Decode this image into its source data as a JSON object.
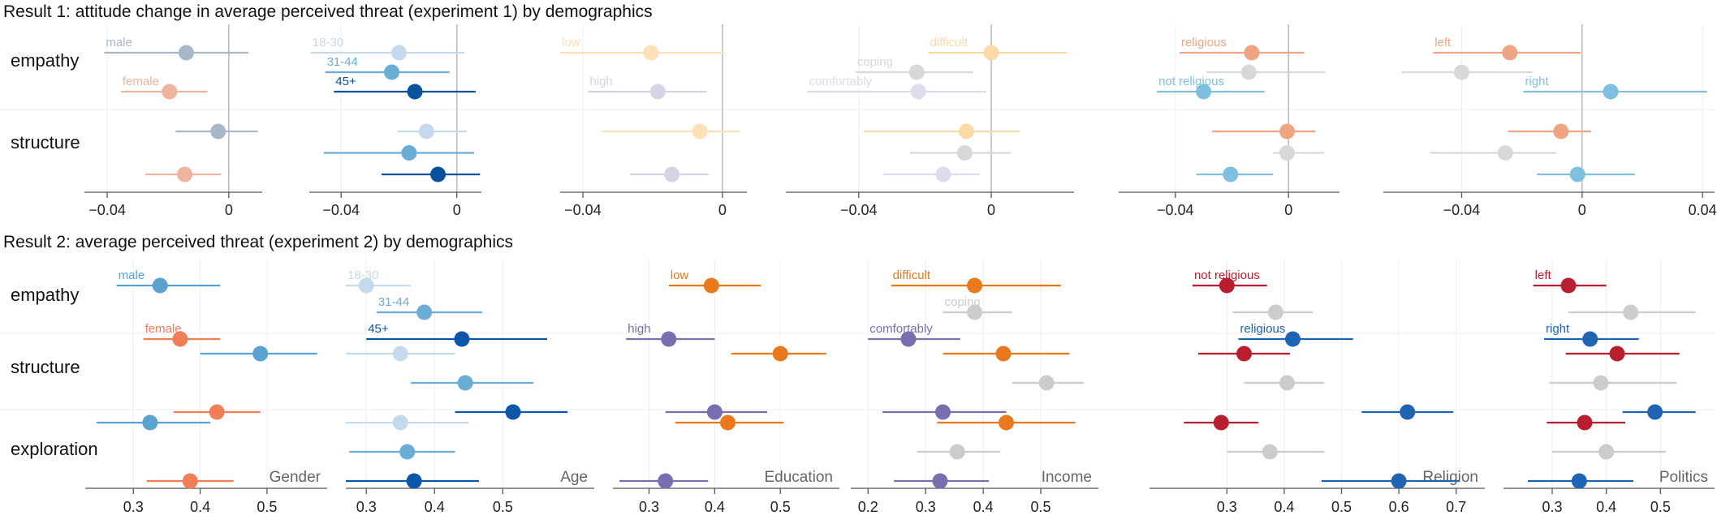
{
  "chart_data": [
    {
      "type": "dot-interval",
      "title": "Result 1:  attitude change in average perceived threat (experiment 1) by demographics",
      "rows": [
        "empathy",
        "structure"
      ],
      "panels": [
        {
          "name": "",
          "ticks": [
            -0.04,
            0
          ],
          "xlim": [
            -0.0475,
            0.011
          ],
          "groups": [
            {
              "label": "male",
              "color": "#a6b8c8",
              "rows": [
                [
                  -0.014,
                  -0.041,
                  0.0065
                ],
                [
                  -0.0035,
                  -0.0175,
                  0.0095
                ]
              ]
            },
            {
              "label": "female",
              "color": "#efb49e",
              "rows": [
                [
                  -0.0195,
                  -0.0355,
                  -0.007
                ],
                [
                  -0.0145,
                  -0.0275,
                  -0.0025
                ]
              ]
            }
          ]
        },
        {
          "name": "",
          "ticks": [
            -0.04,
            0
          ],
          "xlim": [
            -0.051,
            0.0085
          ],
          "groups": [
            {
              "label": "18-30",
              "color": "#c5d9ec",
              "rows": [
                [
                  -0.02,
                  -0.0505,
                  0.0025
                ],
                [
                  -0.0105,
                  -0.0205,
                  0.0035
                ]
              ]
            },
            {
              "label": "31-44",
              "color": "#6aaed6",
              "rows": [
                [
                  -0.0225,
                  -0.0455,
                  -0.0025
                ],
                [
                  -0.0165,
                  -0.046,
                  0.006
                ]
              ]
            },
            {
              "label": "45+",
              "color": "#08519c",
              "rows": [
                [
                  -0.0145,
                  -0.0425,
                  0.0065
                ],
                [
                  -0.0065,
                  -0.026,
                  0.008
                ]
              ]
            }
          ]
        },
        {
          "name": "",
          "ticks": [
            -0.04,
            0
          ],
          "xlim": [
            -0.0465,
            0.007
          ],
          "groups": [
            {
              "label": "low",
              "color": "#fde0b5",
              "rows": [
                [
                  -0.0205,
                  -0.0465,
                  0.0005
                ],
                [
                  -0.0065,
                  -0.0345,
                  0.005
                ]
              ]
            },
            {
              "label": "high",
              "color": "#d4d4e6",
              "rows": [
                [
                  -0.0185,
                  -0.0385,
                  -0.0045
                ],
                [
                  -0.0145,
                  -0.0265,
                  -0.004
                ]
              ]
            }
          ]
        },
        {
          "name": "",
          "ticks": [
            -0.04,
            0
          ],
          "xlim": [
            -0.062,
            0.025
          ],
          "groups": [
            {
              "label": "difficult",
              "color": "#fdd9a8",
              "rows": [
                [
                  0.0,
                  -0.019,
                  0.023
                ],
                [
                  -0.0075,
                  -0.0385,
                  0.0085
                ]
              ]
            },
            {
              "label": "coping",
              "color": "#d8d8d8",
              "rows": [
                [
                  -0.0225,
                  -0.041,
                  -0.0055
                ],
                [
                  -0.008,
                  -0.0245,
                  0.006
                ]
              ]
            },
            {
              "label": "comfortably",
              "color": "#dcdcec",
              "rows": [
                [
                  -0.022,
                  -0.0555,
                  -0.0015
                ],
                [
                  -0.0145,
                  -0.0325,
                  -0.0035
                ]
              ]
            }
          ]
        },
        {
          "name": "",
          "ticks": [
            -0.04,
            0
          ],
          "xlim": [
            -0.06,
            0.018
          ],
          "groups": [
            {
              "label": "religious",
              "color": "#f0a582",
              "rows": [
                [
                  -0.013,
                  -0.0385,
                  0.0055
                ],
                [
                  -0.0005,
                  -0.027,
                  0.0095
                ]
              ]
            },
            {
              "label": "",
              "color": "#d8d8d8",
              "rows": [
                [
                  -0.014,
                  -0.029,
                  0.013
                ],
                [
                  -0.0005,
                  -0.0055,
                  0.0125
                ]
              ]
            },
            {
              "label": "not religious",
              "color": "#7fbfe0",
              "rows": [
                [
                  -0.03,
                  -0.0465,
                  -0.0085
                ],
                [
                  -0.0205,
                  -0.0325,
                  -0.0055
                ]
              ]
            }
          ]
        },
        {
          "name": "",
          "ticks": [
            -0.04,
            0,
            0.04
          ],
          "xlim": [
            -0.066,
            0.044
          ],
          "groups": [
            {
              "label": "left",
              "color": "#f0a582",
              "rows": [
                [
                  -0.024,
                  -0.0495,
                  -0.0005
                ],
                [
                  -0.007,
                  -0.0245,
                  0.003
                ]
              ]
            },
            {
              "label": "",
              "color": "#d8d8d8",
              "rows": [
                [
                  -0.04,
                  -0.06,
                  -0.0165
                ],
                [
                  -0.0255,
                  -0.0505,
                  -0.0085
                ]
              ]
            },
            {
              "label": "right",
              "color": "#7fbfe0",
              "rows": [
                [
                  0.0095,
                  -0.0195,
                  0.0415
                ],
                [
                  -0.0015,
                  -0.015,
                  0.0175
                ]
              ]
            }
          ]
        }
      ]
    },
    {
      "type": "dot-interval",
      "title": "Result 2:  average perceived threat (experiment 2) by demographics",
      "rows": [
        "empathy",
        "structure",
        "exploration"
      ],
      "panels": [
        {
          "name": "Gender",
          "ticks": [
            0.3,
            0.4,
            0.5
          ],
          "xlim": [
            0.228,
            0.59
          ],
          "groups": [
            {
              "label": "male",
              "color": "#5aa2d2",
              "rows": [
                [
                  0.34,
                  0.275,
                  0.43
                ],
                [
                  0.49,
                  0.4,
                  0.575
                ],
                [
                  0.325,
                  0.245,
                  0.415
                ]
              ]
            },
            {
              "label": "female",
              "color": "#f07e57",
              "rows": [
                [
                  0.37,
                  0.315,
                  0.43
                ],
                [
                  0.425,
                  0.36,
                  0.49
                ],
                [
                  0.385,
                  0.32,
                  0.45
                ]
              ]
            }
          ]
        },
        {
          "name": "Age",
          "ticks": [
            0.3,
            0.4,
            0.5
          ],
          "xlim": [
            0.27,
            0.634
          ],
          "groups": [
            {
              "label": "18-30",
              "color": "#c5d9ec",
              "rows": [
                [
                  0.3,
                  0.27,
                  0.365
                ],
                [
                  0.35,
                  0.27,
                  0.43
                ],
                [
                  0.35,
                  0.27,
                  0.45
                ]
              ]
            },
            {
              "label": "31-44",
              "color": "#6aaed6",
              "rows": [
                [
                  0.385,
                  0.315,
                  0.47
                ],
                [
                  0.445,
                  0.365,
                  0.545
                ],
                [
                  0.36,
                  0.275,
                  0.43
                ]
              ]
            },
            {
              "label": "45+",
              "color": "#0b56a8",
              "rows": [
                [
                  0.44,
                  0.3,
                  0.565
                ],
                [
                  0.515,
                  0.43,
                  0.595
                ],
                [
                  0.37,
                  0.27,
                  0.465
                ]
              ]
            }
          ]
        },
        {
          "name": "Education",
          "ticks": [
            0.3,
            0.4,
            0.5
          ],
          "xlim": [
            0.245,
            0.59
          ],
          "groups": [
            {
              "label": "low",
              "color": "#e8791c",
              "rows": [
                [
                  0.395,
                  0.33,
                  0.47
                ],
                [
                  0.5,
                  0.425,
                  0.57
                ],
                [
                  0.42,
                  0.34,
                  0.505
                ]
              ]
            },
            {
              "label": "high",
              "color": "#7a6db0",
              "rows": [
                [
                  0.33,
                  0.265,
                  0.4
                ],
                [
                  0.4,
                  0.325,
                  0.48
                ],
                [
                  0.325,
                  0.255,
                  0.39
                ]
              ]
            }
          ]
        },
        {
          "name": "Income",
          "ticks": [
            0.2,
            0.3,
            0.4,
            0.5
          ],
          "xlim": [
            0.17,
            0.6
          ],
          "groups": [
            {
              "label": "difficult",
              "color": "#e8791c",
              "rows": [
                [
                  0.385,
                  0.24,
                  0.535
                ],
                [
                  0.435,
                  0.33,
                  0.55
                ],
                [
                  0.44,
                  0.32,
                  0.56
                ]
              ]
            },
            {
              "label": "coping",
              "color": "#cccccc",
              "rows": [
                [
                  0.385,
                  0.33,
                  0.45
                ],
                [
                  0.51,
                  0.45,
                  0.575
                ],
                [
                  0.355,
                  0.285,
                  0.43
                ]
              ]
            },
            {
              "label": "comfortably",
              "color": "#7a6db0",
              "rows": [
                [
                  0.27,
                  0.2,
                  0.36
                ],
                [
                  0.33,
                  0.225,
                  0.44
                ],
                [
                  0.325,
                  0.245,
                  0.41
                ]
              ]
            }
          ]
        },
        {
          "name": "Religion",
          "ticks": [
            0.3,
            0.4,
            0.5,
            0.6,
            0.7
          ],
          "xlim": [
            0.165,
            0.75
          ],
          "groups": [
            {
              "label": "not religious",
              "color": "#b81e2f",
              "rows": [
                [
                  0.3,
                  0.24,
                  0.37
                ],
                [
                  0.33,
                  0.25,
                  0.41
                ],
                [
                  0.29,
                  0.225,
                  0.355
                ]
              ]
            },
            {
              "label": "",
              "color": "#cccccc",
              "rows": [
                [
                  0.385,
                  0.31,
                  0.45
                ],
                [
                  0.405,
                  0.33,
                  0.47
                ],
                [
                  0.375,
                  0.3,
                  0.47
                ]
              ]
            },
            {
              "label": "religious",
              "color": "#1f64b3",
              "rows": [
                [
                  0.415,
                  0.32,
                  0.52
                ],
                [
                  0.615,
                  0.535,
                  0.695
                ],
                [
                  0.6,
                  0.465,
                  0.705
                ]
              ]
            }
          ]
        },
        {
          "name": "Politics",
          "ticks": [
            0.3,
            0.4,
            0.5
          ],
          "xlim": [
            0.21,
            0.6
          ],
          "groups": [
            {
              "label": "left",
              "color": "#b81e2f",
              "rows": [
                [
                  0.33,
                  0.265,
                  0.4
                ],
                [
                  0.42,
                  0.325,
                  0.535
                ],
                [
                  0.36,
                  0.29,
                  0.435
                ]
              ]
            },
            {
              "label": "",
              "color": "#cccccc",
              "rows": [
                [
                  0.445,
                  0.33,
                  0.565
                ],
                [
                  0.39,
                  0.295,
                  0.53
                ],
                [
                  0.4,
                  0.3,
                  0.51
                ]
              ]
            },
            {
              "label": "right",
              "color": "#1f64b3",
              "rows": [
                [
                  0.37,
                  0.285,
                  0.46
                ],
                [
                  0.49,
                  0.43,
                  0.565
                ],
                [
                  0.35,
                  0.255,
                  0.45
                ]
              ]
            }
          ]
        }
      ]
    }
  ]
}
